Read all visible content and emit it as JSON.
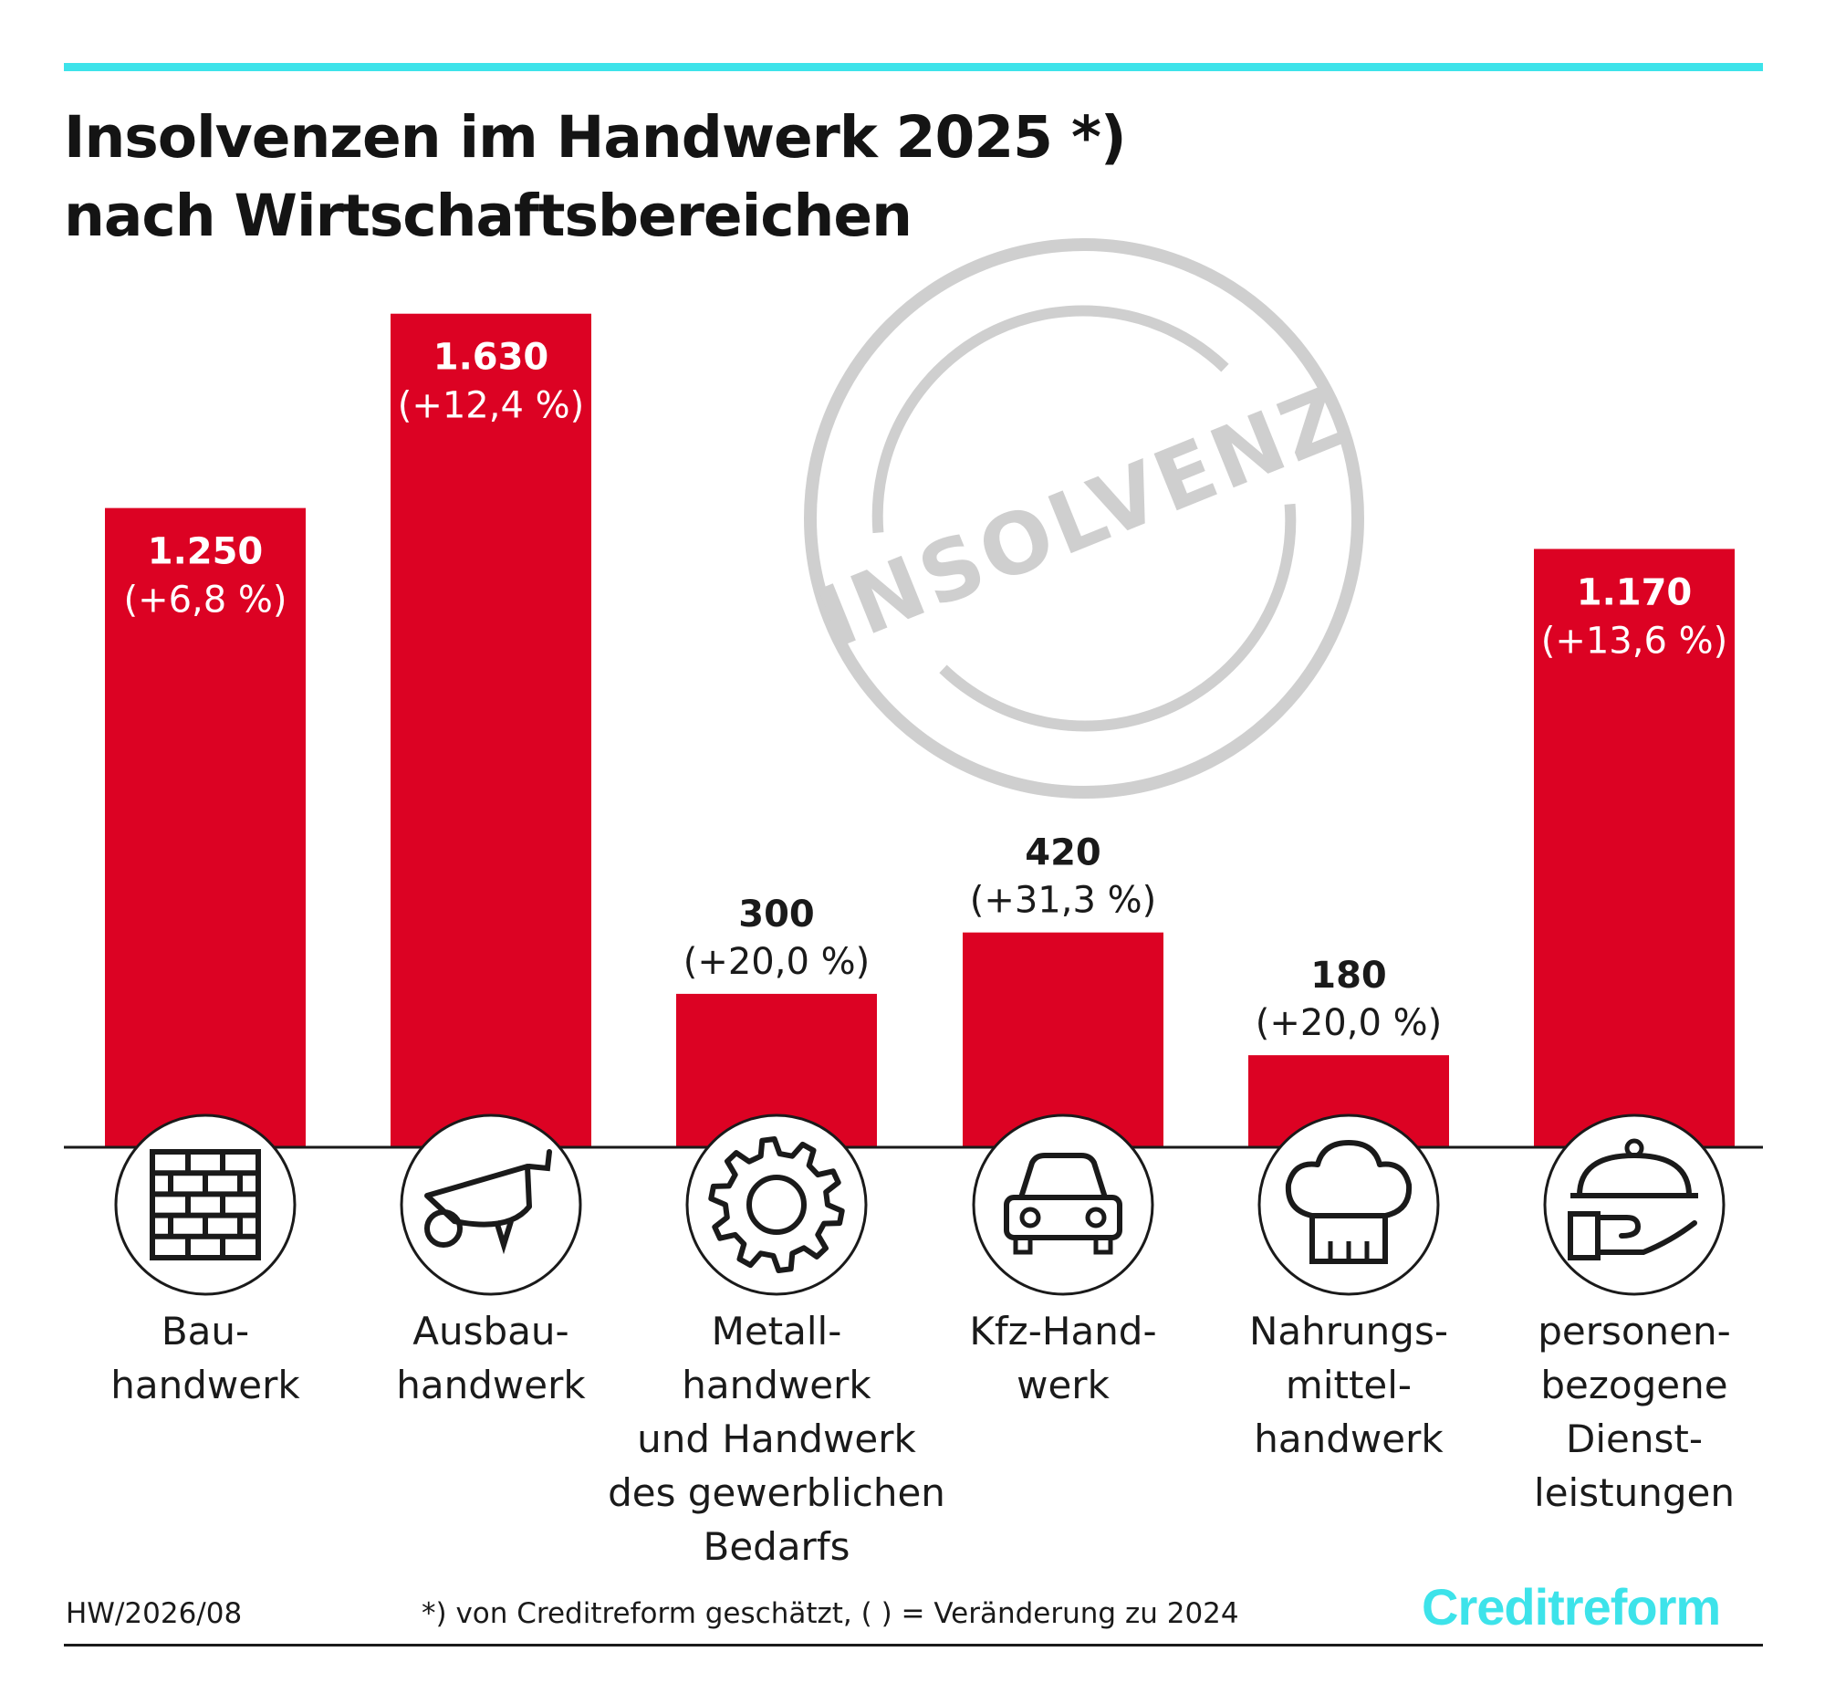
{
  "title": {
    "line1": "Insolvenzen im Handwerk 2025 *)",
    "line2": "nach Wirtschaftsbereichen"
  },
  "stamp_text": "INSOLVENZ",
  "colors": {
    "bar": "#dc0223",
    "accent": "#3de3ea",
    "stamp": "#cfcfcf",
    "text": "#1a1a1a"
  },
  "chart_data": {
    "type": "bar",
    "ylim": [
      0,
      1900
    ],
    "categories": [
      {
        "name": "Bauhandwerk",
        "lines": [
          "Bau-",
          "handwerk"
        ],
        "icon": "brick-wall-icon"
      },
      {
        "name": "Ausbauhandwerk",
        "lines": [
          "Ausbau-",
          "handwerk"
        ],
        "icon": "wheelbarrow-icon"
      },
      {
        "name": "Metallhandwerk und Handwerk des gewerblichen Bedarfs",
        "lines": [
          "Metall-",
          "handwerk",
          "und Handwerk",
          "des gewerblichen",
          "Bedarfs"
        ],
        "icon": "gear-icon"
      },
      {
        "name": "Kfz-Handwerk",
        "lines": [
          "Kfz-Hand-",
          "werk"
        ],
        "icon": "car-icon"
      },
      {
        "name": "Nahrungsmittelhandwerk",
        "lines": [
          "Nahrungs-",
          "mittel-",
          "handwerk"
        ],
        "icon": "chef-hat-icon"
      },
      {
        "name": "personenbezogene Dienstleistungen",
        "lines": [
          "personen-",
          "bezogene",
          "Dienst-",
          "leistungen"
        ],
        "icon": "serving-cloche-icon"
      }
    ],
    "values": [
      1250,
      1630,
      300,
      420,
      180,
      1170
    ],
    "value_labels": [
      "1.250",
      "1.630",
      "300",
      "420",
      "180",
      "1.170"
    ],
    "change_labels": [
      "(+6,8 %)",
      "(+12,4 %)",
      "(+20,0 %)",
      "(+31,3 %)",
      "(+20,0 %)",
      "(+13,6 %)"
    ]
  },
  "footer": {
    "code": "HW/2026/08",
    "note": "*) von Creditreform geschätzt, ( ) = Veränderung zu 2024",
    "logo": "Creditreform"
  }
}
